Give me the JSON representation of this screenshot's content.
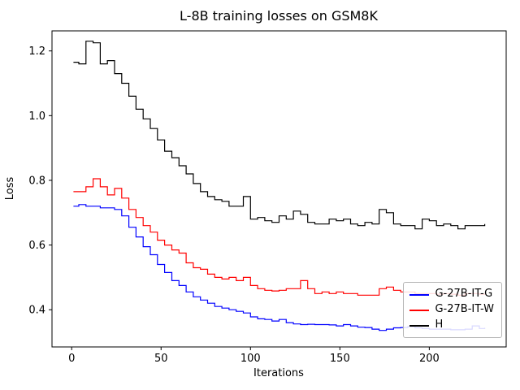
{
  "figure": {
    "background": "#ffffff"
  },
  "chart_data": {
    "type": "line",
    "title": "L-8B training losses on GSM8K",
    "xlabel": "Iterations",
    "ylabel": "Loss",
    "xlim": [
      -11,
      243
    ],
    "ylim": [
      0.285,
      1.262
    ],
    "xticks": [
      0,
      50,
      100,
      150,
      200
    ],
    "xtick_labels": [
      "0",
      "50",
      "100",
      "150",
      "200"
    ],
    "yticks": [
      0.4,
      0.6,
      0.8,
      1.0,
      1.2
    ],
    "ytick_labels": [
      "0.4",
      "0.6",
      "0.8",
      "1.0",
      "1.2"
    ],
    "grid": false,
    "legend_position": "lower right",
    "line_style": "steps",
    "x": [
      1,
      4,
      8,
      12,
      16,
      20,
      24,
      28,
      32,
      36,
      40,
      44,
      48,
      52,
      56,
      60,
      64,
      68,
      72,
      76,
      80,
      84,
      88,
      92,
      96,
      100,
      104,
      108,
      112,
      116,
      120,
      124,
      128,
      132,
      136,
      140,
      144,
      148,
      152,
      156,
      160,
      164,
      168,
      172,
      176,
      180,
      184,
      188,
      192,
      196,
      200,
      204,
      208,
      212,
      216,
      220,
      224,
      228,
      231
    ],
    "series": [
      {
        "name": "G-27B-IT-G",
        "color": "#0000ff",
        "values": [
          0.72,
          0.725,
          0.72,
          0.72,
          0.715,
          0.715,
          0.71,
          0.69,
          0.655,
          0.625,
          0.595,
          0.57,
          0.54,
          0.515,
          0.49,
          0.475,
          0.455,
          0.44,
          0.43,
          0.42,
          0.41,
          0.405,
          0.4,
          0.395,
          0.39,
          0.378,
          0.372,
          0.37,
          0.365,
          0.37,
          0.36,
          0.356,
          0.354,
          0.355,
          0.354,
          0.354,
          0.353,
          0.35,
          0.354,
          0.35,
          0.346,
          0.345,
          0.34,
          0.336,
          0.34,
          0.344,
          0.345,
          0.348,
          0.344,
          0.342,
          0.34,
          0.34,
          0.34,
          0.338,
          0.338,
          0.34,
          0.35,
          0.342,
          0.344
        ]
      },
      {
        "name": "G-27B-IT-W",
        "color": "#ff0000",
        "values": [
          0.765,
          0.765,
          0.78,
          0.805,
          0.78,
          0.755,
          0.775,
          0.745,
          0.71,
          0.685,
          0.66,
          0.64,
          0.615,
          0.6,
          0.585,
          0.575,
          0.545,
          0.53,
          0.525,
          0.51,
          0.5,
          0.495,
          0.5,
          0.49,
          0.5,
          0.475,
          0.465,
          0.46,
          0.458,
          0.46,
          0.465,
          0.465,
          0.49,
          0.465,
          0.45,
          0.455,
          0.45,
          0.455,
          0.45,
          0.45,
          0.445,
          0.445,
          0.445,
          0.465,
          0.47,
          0.46,
          0.455,
          0.455,
          0.45,
          0.45,
          0.45,
          0.448,
          0.45,
          0.448,
          0.445,
          0.45,
          0.45,
          0.448,
          0.45
        ]
      },
      {
        "name": "H",
        "color": "#000000",
        "values": [
          1.165,
          1.16,
          1.23,
          1.225,
          1.16,
          1.17,
          1.13,
          1.1,
          1.06,
          1.02,
          0.99,
          0.96,
          0.925,
          0.89,
          0.87,
          0.845,
          0.82,
          0.79,
          0.765,
          0.75,
          0.74,
          0.735,
          0.72,
          0.72,
          0.75,
          0.68,
          0.685,
          0.675,
          0.67,
          0.69,
          0.68,
          0.705,
          0.695,
          0.67,
          0.665,
          0.665,
          0.68,
          0.675,
          0.68,
          0.665,
          0.66,
          0.67,
          0.665,
          0.71,
          0.7,
          0.665,
          0.66,
          0.66,
          0.65,
          0.68,
          0.675,
          0.66,
          0.665,
          0.66,
          0.65,
          0.66,
          0.66,
          0.66,
          0.665
        ]
      }
    ]
  }
}
